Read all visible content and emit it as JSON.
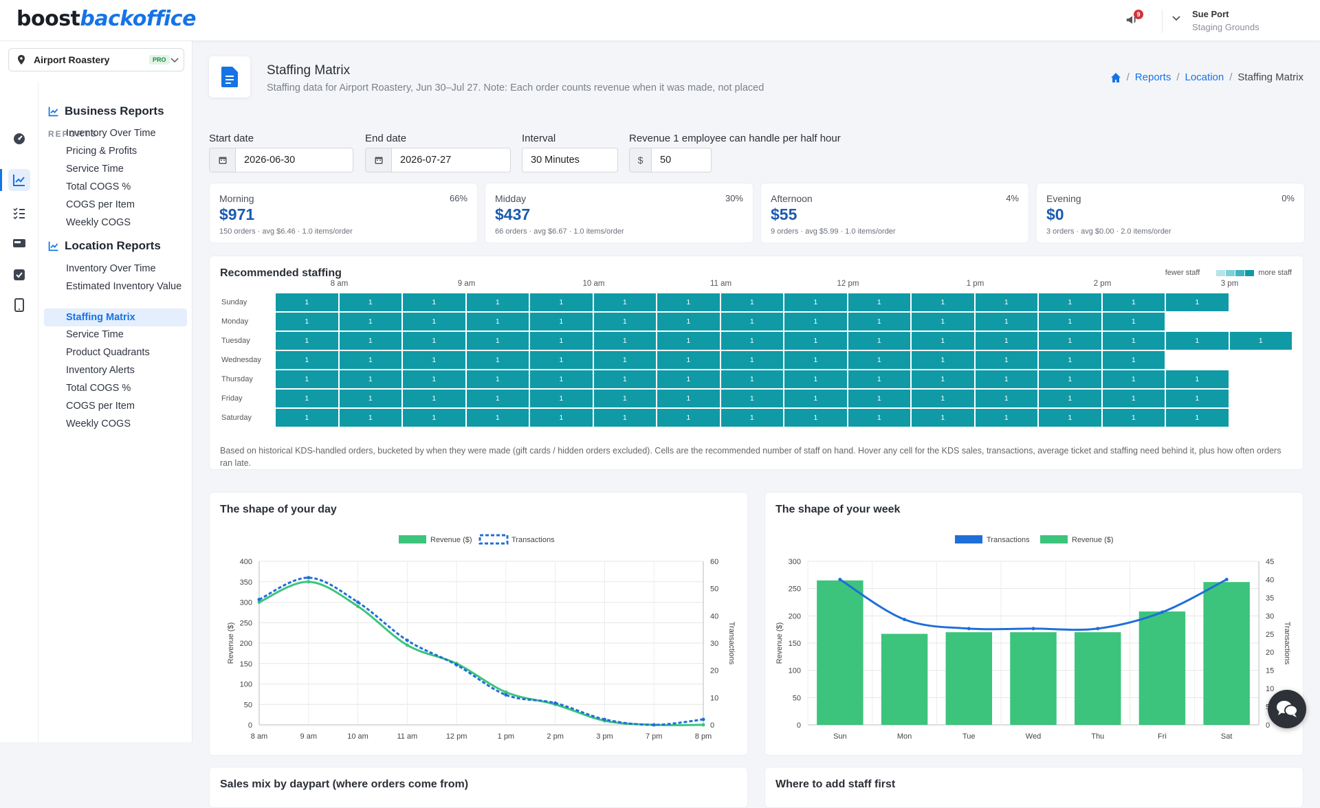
{
  "brand": {
    "part1": "boost",
    "part2": "backoffice"
  },
  "header": {
    "notification_count": "9",
    "user_name": "Sue Port",
    "user_location": "Staging Grounds"
  },
  "location_selector": {
    "name": "Airport Roastery",
    "badge": "PRO"
  },
  "sidebar": {
    "section_label": "REPORTS",
    "groups": [
      {
        "title": "Business Reports",
        "items": [
          "Inventory Over Time",
          "Pricing & Profits",
          "Service Time",
          "Total COGS %",
          "COGS per Item",
          "Weekly COGS"
        ]
      },
      {
        "title": "Location Reports",
        "items": [
          "Inventory Over Time",
          "Estimated Inventory Value",
          "Staffing Matrix",
          "Service Time",
          "Product Quadrants",
          "Inventory Alerts",
          "Total COGS %",
          "COGS per Item",
          "Weekly COGS"
        ]
      }
    ],
    "active_item": "Staffing Matrix",
    "rail_icons": [
      "dashboard-icon",
      "chart-icon",
      "checklist-icon",
      "pos-icon",
      "checkbox-icon",
      "tablet-icon"
    ]
  },
  "page": {
    "title": "Staffing Matrix",
    "subtitle": "Staffing data for Airport Roastery, Jun 30–Jul 27. Note: Each order counts revenue when it was made, not placed",
    "breadcrumb": [
      "Reports",
      "Location",
      "Staffing Matrix"
    ]
  },
  "filters": {
    "start_label": "Start date",
    "start_value": "2026-06-30",
    "end_label": "End date",
    "end_value": "2026-07-27",
    "interval_label": "Interval",
    "interval_value": "30 Minutes",
    "capacity_label": "Revenue 1 employee can handle per half hour",
    "capacity_prefix": "$",
    "capacity_value": "50"
  },
  "dayparts": [
    {
      "name": "Morning",
      "pct": "66%",
      "revenue": "$971",
      "meta": "150 orders · avg $6.46 · 1.0 items/order"
    },
    {
      "name": "Midday",
      "pct": "30%",
      "revenue": "$437",
      "meta": "66 orders · avg $6.67 · 1.0 items/order"
    },
    {
      "name": "Afternoon",
      "pct": "4%",
      "revenue": "$55",
      "meta": "9 orders · avg $5.99 · 1.0 items/order"
    },
    {
      "name": "Evening",
      "pct": "0%",
      "revenue": "$0",
      "meta": "3 orders · avg $0.00 · 2.0 items/order"
    }
  ],
  "staffing": {
    "title": "Recommended staffing",
    "legend_low": "fewer staff",
    "legend_high": "more staff",
    "scale_colors": [
      "#b5e3e8",
      "#7fd0d8",
      "#3fb3bf",
      "#0f9aa6"
    ],
    "cell_color": "#0f9aa6",
    "hour_labels": [
      "8 am",
      "9 am",
      "10 am",
      "11 am",
      "12 pm",
      "1 pm",
      "2 pm",
      "3 pm"
    ],
    "rows": [
      {
        "day": "Sunday",
        "cells": [
          1,
          1,
          1,
          1,
          1,
          1,
          1,
          1,
          1,
          1,
          1,
          1,
          1,
          1,
          1
        ]
      },
      {
        "day": "Monday",
        "cells": [
          1,
          1,
          1,
          1,
          1,
          1,
          1,
          1,
          1,
          1,
          1,
          1,
          1,
          1
        ]
      },
      {
        "day": "Tuesday",
        "cells": [
          1,
          1,
          1,
          1,
          1,
          1,
          1,
          1,
          1,
          1,
          1,
          1,
          1,
          1,
          1,
          1
        ]
      },
      {
        "day": "Wednesday",
        "cells": [
          1,
          1,
          1,
          1,
          1,
          1,
          1,
          1,
          1,
          1,
          1,
          1,
          1,
          1
        ]
      },
      {
        "day": "Thursday",
        "cells": [
          1,
          1,
          1,
          1,
          1,
          1,
          1,
          1,
          1,
          1,
          1,
          1,
          1,
          1,
          1
        ]
      },
      {
        "day": "Friday",
        "cells": [
          1,
          1,
          1,
          1,
          1,
          1,
          1,
          1,
          1,
          1,
          1,
          1,
          1,
          1,
          1
        ]
      },
      {
        "day": "Saturday",
        "cells": [
          1,
          1,
          1,
          1,
          1,
          1,
          1,
          1,
          1,
          1,
          1,
          1,
          1,
          1,
          1
        ]
      }
    ],
    "note": "Based on historical KDS-handled orders, bucketed by when they were made (gift cards / hidden orders excluded). Cells are the recommended number of staff on hand. Hover any cell for the KDS sales, transactions, average ticket and staffing need behind it, plus how often orders ran late."
  },
  "chart_data": [
    {
      "type": "line",
      "title": "The shape of your day",
      "x": [
        "8 am",
        "9 am",
        "10 am",
        "11 am",
        "12 pm",
        "1 pm",
        "2 pm",
        "3 pm",
        "7 pm",
        "8 pm"
      ],
      "series": [
        {
          "name": "Revenue ($)",
          "axis": "left",
          "color": "#3cc47c",
          "values": [
            300,
            350,
            290,
            195,
            150,
            80,
            50,
            10,
            0,
            0
          ]
        },
        {
          "name": "Transactions",
          "axis": "right",
          "color": "#1f6fd8",
          "dashed": true,
          "values": [
            46,
            54,
            45,
            31,
            22,
            11,
            8,
            2,
            0,
            2
          ]
        }
      ],
      "ylabel": "Revenue ($)",
      "y2label": "Transactions",
      "ylim": [
        0,
        400
      ],
      "y2lim": [
        0,
        60
      ],
      "yticks": [
        0,
        50,
        100,
        150,
        200,
        250,
        300,
        350,
        400
      ],
      "y2ticks": [
        0,
        10,
        20,
        30,
        40,
        50,
        60
      ],
      "grid": true,
      "legend": "top"
    },
    {
      "type": "bar",
      "title": "The shape of your week",
      "categories": [
        "Sun",
        "Mon",
        "Tue",
        "Wed",
        "Thu",
        "Fri",
        "Sat"
      ],
      "series": [
        {
          "name": "Transactions",
          "type": "line",
          "axis": "right",
          "color": "#1f6fd8",
          "values": [
            40,
            29,
            26.5,
            26.5,
            26.5,
            31,
            40
          ]
        },
        {
          "name": "Revenue ($)",
          "type": "bar",
          "axis": "left",
          "color": "#3cc47c",
          "values": [
            265,
            167,
            170,
            170,
            170,
            208,
            262
          ]
        }
      ],
      "ylabel": "Revenue ($)",
      "y2label": "Transactions",
      "ylim": [
        0,
        300
      ],
      "y2lim": [
        0,
        45
      ],
      "yticks": [
        0,
        50,
        100,
        150,
        200,
        250,
        300
      ],
      "y2ticks": [
        0,
        5,
        10,
        15,
        20,
        25,
        30,
        35,
        40,
        45
      ],
      "grid": true,
      "legend": "top"
    }
  ],
  "lower_cards": {
    "left_title": "Sales mix by daypart (where orders come from)",
    "right_title": "Where to add staff first"
  }
}
